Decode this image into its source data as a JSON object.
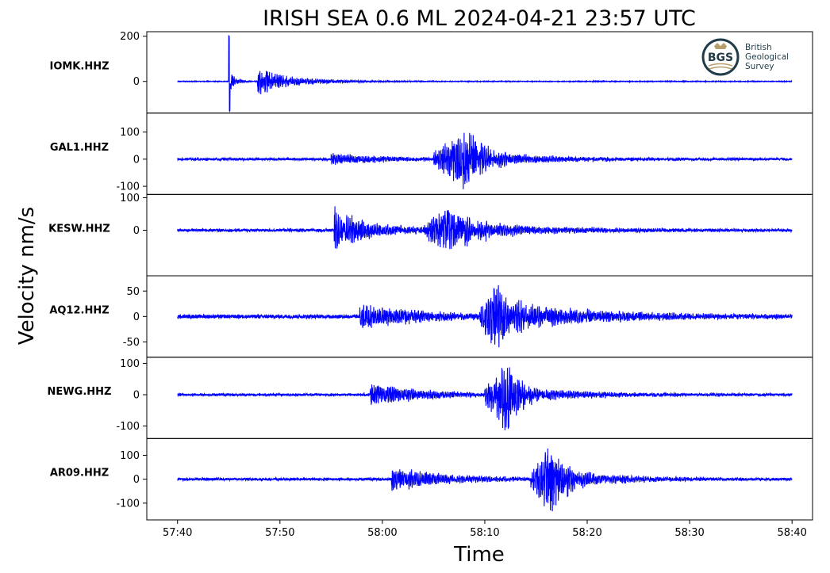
{
  "title": "IRISH SEA 0.6 ML   2024-04-21 23:57 UTC",
  "xlabel": "Time",
  "ylabel": "Velocity nm/s",
  "logo": {
    "abbr": "BGS",
    "lines": [
      "British",
      "Geological",
      "Survey"
    ],
    "color": "#1f3c48",
    "accent": "#b9a06a"
  },
  "chart_data": {
    "type": "line",
    "trace_color": "#0000ff",
    "x": {
      "ticks": [
        "57:40",
        "57:50",
        "58:00",
        "58:10",
        "58:20",
        "58:30",
        "58:40"
      ],
      "tick_seconds": [
        0,
        10,
        20,
        30,
        40,
        50,
        60
      ],
      "range_seconds": [
        -3,
        62
      ],
      "data_range_seconds": [
        0,
        60
      ]
    },
    "panels": [
      {
        "station": "IOMK.HHZ",
        "ylim": [
          -140,
          220
        ],
        "yticks": [
          200,
          0
        ],
        "ytick_labels": [
          "200",
          "0"
        ],
        "noise": 1.5,
        "events": [
          {
            "start": 5.0,
            "amp": 200,
            "neg": 130,
            "decay": 0.08,
            "freq": 1.6,
            "sharp": true
          },
          {
            "start": 5.2,
            "amp": 40,
            "decay": 0.6,
            "freq": 1.2
          },
          {
            "start": 7.8,
            "amp": 75,
            "decay": 1.6,
            "freq": 1.1
          },
          {
            "start": 8.5,
            "amp": 30,
            "decay": 5.0,
            "freq": 1.0
          }
        ]
      },
      {
        "station": "GAL1.HHZ",
        "ylim": [
          -130,
          170
        ],
        "yticks": [
          100,
          0,
          -100
        ],
        "ytick_labels": [
          "100",
          "0",
          "-100"
        ],
        "noise": 4,
        "events": [
          {
            "start": 15.0,
            "amp": 22,
            "decay": 6.0,
            "freq": 1.0
          },
          {
            "start": 25.0,
            "amp": 110,
            "neg": 120,
            "decay": 1.8,
            "freq": 0.9,
            "rise": 2.2,
            "peak": 28.2
          },
          {
            "start": 28.5,
            "amp": 30,
            "decay": 8.0,
            "freq": 1.0
          }
        ]
      },
      {
        "station": "KESW.HHZ",
        "ylim": [
          -140,
          110
        ],
        "yticks": [
          100,
          0
        ],
        "ytick_labels": [
          "100",
          "0"
        ],
        "noise": 4,
        "events": [
          {
            "start": 15.3,
            "amp": 100,
            "neg": 110,
            "decay": 0.9,
            "freq": 1.0
          },
          {
            "start": 16.5,
            "amp": 38,
            "decay": 5.0,
            "freq": 1.0
          },
          {
            "start": 24.0,
            "amp": 70,
            "decay": 2.6,
            "freq": 0.9,
            "rise": 1.6,
            "peak": 26.2
          },
          {
            "start": 27.0,
            "amp": 25,
            "decay": 10.0,
            "freq": 1.0
          }
        ]
      },
      {
        "station": "AQ12.HHZ",
        "ylim": [
          -80,
          80
        ],
        "yticks": [
          50,
          0,
          -50
        ],
        "ytick_labels": [
          "50",
          "0",
          "-50"
        ],
        "noise": 3.5,
        "events": [
          {
            "start": 17.8,
            "amp": 28,
            "decay": 6.0,
            "freq": 1.0
          },
          {
            "start": 29.5,
            "amp": 70,
            "neg": 75,
            "decay": 1.5,
            "freq": 0.9,
            "rise": 1.0,
            "peak": 31.2
          },
          {
            "start": 33.0,
            "amp": 25,
            "decay": 10.0,
            "freq": 1.0
          }
        ]
      },
      {
        "station": "NEWG.HHZ",
        "ylim": [
          -140,
          120
        ],
        "yticks": [
          100,
          0,
          -100
        ],
        "ytick_labels": [
          "100",
          "0",
          "-100"
        ],
        "noise": 3.5,
        "events": [
          {
            "start": 18.8,
            "amp": 45,
            "decay": 2.5,
            "freq": 1.0
          },
          {
            "start": 20.5,
            "amp": 18,
            "decay": 8.0,
            "freq": 1.0
          },
          {
            "start": 30.0,
            "amp": 100,
            "neg": 130,
            "decay": 1.3,
            "freq": 0.9,
            "rise": 1.2,
            "peak": 32.3
          },
          {
            "start": 33.5,
            "amp": 22,
            "decay": 8.0,
            "freq": 1.0
          }
        ]
      },
      {
        "station": "AR09.HHZ",
        "ylim": [
          -170,
          170
        ],
        "yticks": [
          100,
          0,
          -100
        ],
        "ytick_labels": [
          "100",
          "0",
          "-100"
        ],
        "noise": 5,
        "events": [
          {
            "start": 20.9,
            "amp": 55,
            "decay": 2.8,
            "freq": 1.0
          },
          {
            "start": 22.5,
            "amp": 22,
            "decay": 9.0,
            "freq": 1.0
          },
          {
            "start": 34.5,
            "amp": 150,
            "neg": 160,
            "decay": 1.4,
            "freq": 0.9,
            "rise": 1.0,
            "peak": 36.5
          },
          {
            "start": 38.0,
            "amp": 35,
            "decay": 6.0,
            "freq": 1.0
          }
        ]
      }
    ]
  }
}
